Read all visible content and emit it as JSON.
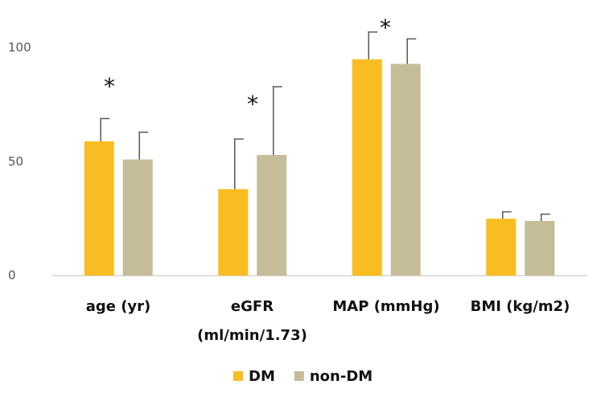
{
  "chart_data": {
    "type": "bar",
    "categories": [
      "age (yr)",
      "eGFR\n(ml/min/1.73)",
      "MAP (mmHg)",
      "BMI (kg/m2)"
    ],
    "series": [
      {
        "name": "DM",
        "color": "#f8bd22",
        "values": [
          59,
          38,
          95,
          25
        ],
        "errors": [
          10,
          22,
          12,
          3
        ]
      },
      {
        "name": "non-DM",
        "color": "#c5bd98",
        "values": [
          51,
          53,
          93,
          24
        ],
        "errors": [
          12,
          30,
          11,
          3
        ]
      }
    ],
    "annotations": [
      "*",
      "*",
      "*"
    ],
    "ylim": [
      0,
      120
    ],
    "yticks": [
      0,
      50,
      100
    ],
    "grid": false,
    "legend": "bottom"
  }
}
